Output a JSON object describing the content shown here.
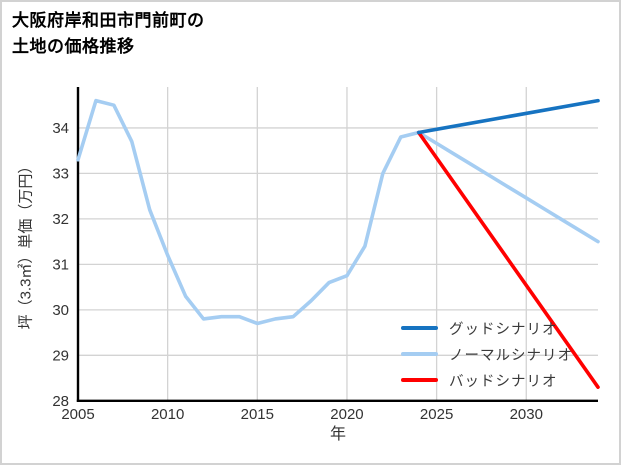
{
  "title": {
    "line1": "大阪府岸和田市門前町の",
    "line2": "土地の価格推移"
  },
  "colors": {
    "good_scenario": "#1673c1",
    "normal_scenario": "#a5cdf2",
    "bad_scenario": "#ff0000",
    "grid": "#d3d3d3",
    "axis": "#000000",
    "tick_text": "#333333"
  },
  "chart_data": {
    "type": "line",
    "title": "大阪府岸和田市門前町の土地の価格推移",
    "xlabel": "年",
    "ylabel": "坪（3.3㎡）単価（万円）",
    "x_ticks": [
      2005,
      2010,
      2015,
      2020,
      2025,
      2030
    ],
    "y_ticks": [
      28,
      29,
      30,
      31,
      32,
      33,
      34
    ],
    "xlim": [
      2005,
      2034
    ],
    "ylim": [
      28,
      34.9
    ],
    "grid": true,
    "legend_position": "lower-right-inside",
    "series": [
      {
        "name": "グッドシナリオ",
        "color": "#1673c1",
        "x": [
          2024,
          2034
        ],
        "y": [
          33.9,
          34.6
        ]
      },
      {
        "name": "ノーマルシナリオ",
        "color": "#a5cdf2",
        "x": [
          2005,
          2006,
          2007,
          2008,
          2009,
          2010,
          2011,
          2012,
          2013,
          2014,
          2015,
          2016,
          2017,
          2018,
          2019,
          2020,
          2021,
          2022,
          2023,
          2024,
          2025,
          2026,
          2027,
          2028,
          2029,
          2030,
          2031,
          2032,
          2033,
          2034
        ],
        "y": [
          33.3,
          34.6,
          34.5,
          33.7,
          32.2,
          31.2,
          30.3,
          29.8,
          29.85,
          29.85,
          29.7,
          29.8,
          29.85,
          30.2,
          30.6,
          30.75,
          31.4,
          33.0,
          33.8,
          33.9,
          33.66,
          33.42,
          33.18,
          32.94,
          32.7,
          32.46,
          32.22,
          31.98,
          31.74,
          31.5
        ]
      },
      {
        "name": "バッドシナリオ",
        "color": "#ff0000",
        "x": [
          2024,
          2034
        ],
        "y": [
          33.9,
          28.3
        ]
      }
    ],
    "legend": [
      {
        "label": "グッドシナリオ",
        "color": "#1673c1"
      },
      {
        "label": "ノーマルシナリオ",
        "color": "#a5cdf2"
      },
      {
        "label": "バッドシナリオ",
        "color": "#ff0000"
      }
    ]
  }
}
